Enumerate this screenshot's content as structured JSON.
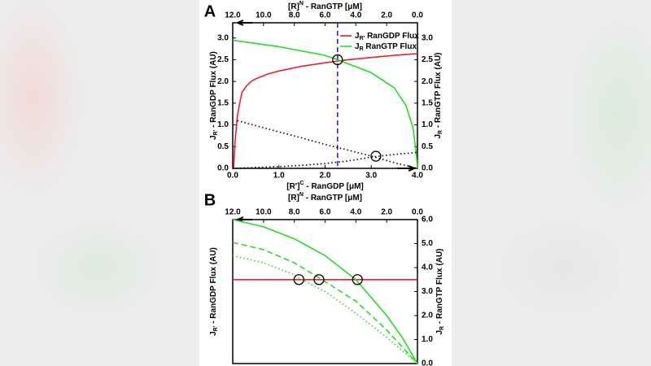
{
  "chart_data": [
    {
      "type": "line",
      "panel_label": "A",
      "x_title": [
        {
          "text": "[R']"
        },
        {
          "text": "C",
          "shift": "sup"
        },
        {
          "text": " - RanGDP [μM]"
        }
      ],
      "x2_title": [
        {
          "text": "[R]"
        },
        {
          "text": "N",
          "shift": "sup"
        },
        {
          "text": " - RanGTP [μM]"
        }
      ],
      "y_title": [
        {
          "text": "J"
        },
        {
          "text": "R'",
          "shift": "sub"
        },
        {
          "text": " - RanGDP Flux (AU)"
        }
      ],
      "y2_title": [
        {
          "text": "J"
        },
        {
          "text": "R",
          "shift": "sub"
        },
        {
          "text": " - RanGTP Flux (AU)"
        }
      ],
      "xlim": [
        0,
        4
      ],
      "xticks": [
        {
          "value": 0,
          "label": "0.0"
        },
        {
          "value": 1,
          "label": "1.0"
        },
        {
          "value": 2,
          "label": "2.0"
        },
        {
          "value": 3,
          "label": "3.0"
        },
        {
          "value": 4,
          "label": "4.0"
        }
      ],
      "x2lim": [
        12,
        0
      ],
      "x2ticks": [
        {
          "value": 12,
          "label": "12.0"
        },
        {
          "value": 10,
          "label": "10.0"
        },
        {
          "value": 8,
          "label": "8.0"
        },
        {
          "value": 6,
          "label": "6.0"
        },
        {
          "value": 4,
          "label": "4.0"
        },
        {
          "value": 2,
          "label": "2.0"
        },
        {
          "value": 0,
          "label": "0.0"
        }
      ],
      "ylim": [
        0,
        3.35
      ],
      "yticks": [
        {
          "value": 0,
          "label": "0.0"
        },
        {
          "value": 0.5,
          "label": "0.5"
        },
        {
          "value": 1,
          "label": "1.0"
        },
        {
          "value": 1.5,
          "label": "1.5"
        },
        {
          "value": 2,
          "label": "2.0"
        },
        {
          "value": 2.5,
          "label": "2.5"
        },
        {
          "value": 3,
          "label": "3.0"
        }
      ],
      "y2lim": [
        0,
        3.35
      ],
      "y2ticks": [
        {
          "value": 0,
          "label": "0.0"
        },
        {
          "value": 0.5,
          "label": "0.5"
        },
        {
          "value": 1,
          "label": "1.0"
        },
        {
          "value": 1.5,
          "label": "1.5"
        },
        {
          "value": 2,
          "label": "2.0"
        },
        {
          "value": 2.5,
          "label": "2.5"
        },
        {
          "value": 3,
          "label": "3.0"
        }
      ],
      "legend": "upper right",
      "series": [
        {
          "name": [
            {
              "text": "J"
            },
            {
              "text": "R'",
              "shift": "sub"
            },
            {
              "text": " RanGDP Flux"
            }
          ],
          "color": "#e8222a",
          "dash": "solid",
          "xaxis": "x",
          "x": [
            0.02,
            0.05,
            0.1,
            0.15,
            0.2,
            0.3,
            0.4,
            0.5,
            0.75,
            1.0,
            1.5,
            2.0,
            2.5,
            3.0,
            3.5,
            4.0
          ],
          "values": [
            0,
            0.6,
            1.2,
            1.5,
            1.75,
            1.9,
            2.0,
            2.06,
            2.17,
            2.24,
            2.35,
            2.43,
            2.5,
            2.55,
            2.6,
            2.64
          ]
        },
        {
          "name": [
            {
              "text": "J"
            },
            {
              "text": "R",
              "shift": "sub"
            },
            {
              "text": " RanGTP Flux"
            }
          ],
          "color": "#22dd22",
          "dash": "solid",
          "xaxis": "x2",
          "x": [
            12,
            9,
            6,
            5.19,
            3,
            1.5,
            0.75,
            0.3,
            0.09,
            0
          ],
          "values": [
            2.95,
            2.8,
            2.6,
            2.5,
            2.2,
            1.85,
            1.45,
            0.95,
            0.4,
            0
          ]
        },
        {
          "color": "#000000",
          "dash": "dotted",
          "xaxis": "x",
          "x": [
            0.1,
            0.5,
            1,
            1.5,
            2,
            2.5,
            3,
            3.5,
            4
          ],
          "values": [
            1.1,
            0.98,
            0.84,
            0.7,
            0.55,
            0.42,
            0.28,
            0.13,
            0
          ]
        },
        {
          "color": "#000000",
          "dash": "dotted",
          "xaxis": "x",
          "x": [
            0,
            0.5,
            1,
            1.5,
            2,
            2.5,
            3,
            3.5,
            3.9,
            4
          ],
          "values": [
            0,
            0.02,
            0.04,
            0.07,
            0.11,
            0.17,
            0.26,
            0.32,
            0.36,
            0.37
          ]
        }
      ],
      "vlines": [
        {
          "x": 2.27,
          "color": "#1a1acc"
        }
      ],
      "markers": [
        {
          "x": 2.27,
          "y": 2.5,
          "xaxis": "x"
        },
        {
          "x": 3.1,
          "y": 0.28,
          "xaxis": "x"
        }
      ]
    },
    {
      "type": "line",
      "panel_label": "B",
      "x2_title": [
        {
          "text": "[R]"
        },
        {
          "text": "N",
          "shift": "sup"
        },
        {
          "text": " - RanGTP [μM]"
        }
      ],
      "y_title": [
        {
          "text": "J"
        },
        {
          "text": "R'",
          "shift": "sub"
        },
        {
          "text": " - RanGDP Flux (AU)"
        }
      ],
      "y2_title": [
        {
          "text": "J"
        },
        {
          "text": "R",
          "shift": "sub"
        },
        {
          "text": " - RanGTP Flux (AU)"
        }
      ],
      "x2lim": [
        12,
        0
      ],
      "x2ticks": [
        {
          "value": 12,
          "label": "12.0"
        },
        {
          "value": 10,
          "label": "10.0"
        },
        {
          "value": 8,
          "label": "8.0"
        },
        {
          "value": 6,
          "label": "6.0"
        },
        {
          "value": 4,
          "label": "4.0"
        },
        {
          "value": 2,
          "label": "2.0"
        },
        {
          "value": 0,
          "label": "0.0"
        }
      ],
      "y2lim": [
        0,
        6
      ],
      "y2ticks": [
        {
          "value": 0,
          "label": "0.0"
        },
        {
          "value": 1,
          "label": "1.0"
        },
        {
          "value": 2,
          "label": "2.0"
        },
        {
          "value": 3,
          "label": "3.0"
        },
        {
          "value": 4,
          "label": "4.0"
        },
        {
          "value": 5,
          "label": "5.0"
        },
        {
          "value": 6,
          "label": "6.0"
        }
      ],
      "series": [
        {
          "color": "#e8222a",
          "dash": "solid",
          "xaxis": "x2",
          "axis": "y2",
          "x": [
            12,
            0
          ],
          "values": [
            3.5,
            3.5
          ]
        },
        {
          "color": "#22dd22",
          "dash": "solid",
          "xaxis": "x2",
          "axis": "y2",
          "x": [
            12,
            10,
            8,
            6,
            4,
            2,
            1,
            0
          ],
          "values": [
            6.0,
            5.7,
            5.2,
            4.5,
            3.5,
            2.0,
            1.1,
            0
          ]
        },
        {
          "color": "#22dd22",
          "dash": "dashed",
          "xaxis": "x2",
          "axis": "y2",
          "x": [
            12,
            10,
            8,
            6.2,
            4,
            2,
            0
          ],
          "values": [
            5.05,
            4.75,
            4.2,
            3.5,
            2.6,
            1.4,
            0
          ]
        },
        {
          "color": "#22dd22",
          "dash": "dotted",
          "xaxis": "x2",
          "axis": "y2",
          "x": [
            12,
            10,
            8,
            7.5,
            6,
            4,
            2,
            0
          ],
          "values": [
            4.5,
            4.2,
            3.7,
            3.5,
            3.0,
            2.1,
            1.1,
            0
          ]
        }
      ],
      "markers": [
        {
          "x": 7.7,
          "y": 3.5,
          "xaxis": "x2",
          "axis": "y2"
        },
        {
          "x": 6.4,
          "y": 3.5,
          "xaxis": "x2",
          "axis": "y2"
        },
        {
          "x": 3.9,
          "y": 3.5,
          "xaxis": "x2",
          "axis": "y2"
        }
      ]
    }
  ]
}
